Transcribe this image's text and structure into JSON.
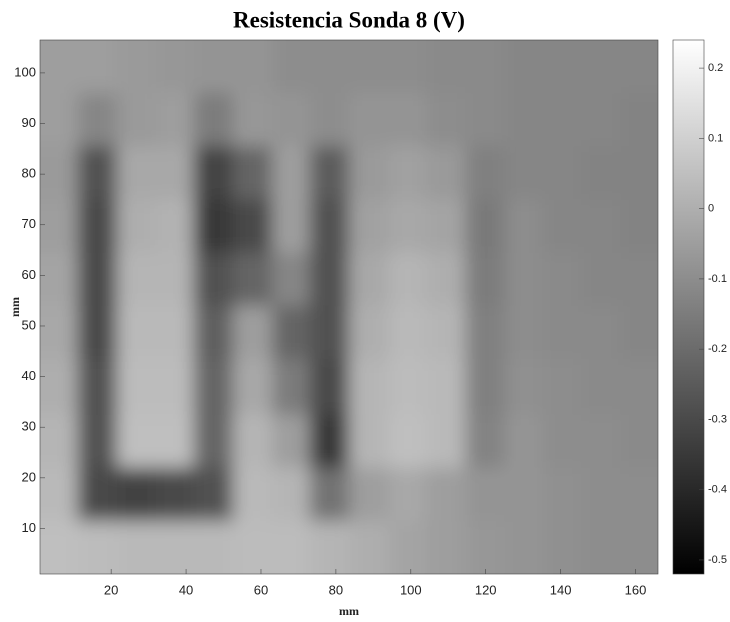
{
  "chart_data": {
    "type": "heatmap",
    "title": "Resistencia Sonda 8 (V)",
    "x_label": "mm",
    "y_label": "mm",
    "colormap": "gray",
    "x": [
      6,
      16,
      27,
      37,
      47,
      58,
      68,
      78,
      89,
      99,
      109,
      120,
      130,
      140,
      151,
      161
    ],
    "y": [
      101,
      91,
      80,
      70,
      59,
      49,
      38,
      27,
      17,
      6
    ],
    "z": [
      [
        -0.05,
        -0.05,
        -0.06,
        -0.07,
        -0.08,
        -0.08,
        -0.1,
        -0.1,
        -0.1,
        -0.1,
        -0.11,
        -0.11,
        -0.12,
        -0.12,
        -0.12,
        -0.12
      ],
      [
        -0.05,
        -0.12,
        -0.06,
        -0.05,
        -0.15,
        -0.07,
        -0.08,
        -0.1,
        -0.08,
        -0.08,
        -0.1,
        -0.11,
        -0.12,
        -0.12,
        -0.12,
        -0.13
      ],
      [
        -0.06,
        -0.28,
        -0.02,
        -0.02,
        -0.32,
        -0.22,
        -0.05,
        -0.25,
        -0.06,
        -0.04,
        -0.06,
        -0.14,
        -0.12,
        -0.12,
        -0.13,
        -0.13
      ],
      [
        -0.05,
        -0.3,
        0.0,
        0.01,
        -0.35,
        -0.3,
        -0.05,
        -0.28,
        -0.04,
        -0.02,
        -0.03,
        -0.16,
        -0.1,
        -0.12,
        -0.12,
        -0.13
      ],
      [
        -0.03,
        -0.3,
        0.02,
        0.02,
        -0.28,
        -0.22,
        -0.12,
        -0.28,
        -0.02,
        0.02,
        0.0,
        -0.15,
        -0.1,
        -0.11,
        -0.12,
        -0.12
      ],
      [
        -0.02,
        -0.3,
        0.03,
        0.03,
        -0.24,
        -0.05,
        -0.22,
        -0.28,
        0.0,
        0.03,
        0.02,
        -0.14,
        -0.1,
        -0.11,
        -0.11,
        -0.12
      ],
      [
        0.0,
        -0.28,
        0.04,
        0.04,
        -0.22,
        -0.02,
        -0.15,
        -0.3,
        0.02,
        0.04,
        0.03,
        -0.14,
        -0.09,
        -0.1,
        -0.11,
        -0.11
      ],
      [
        0.02,
        -0.28,
        0.05,
        0.05,
        -0.22,
        0.02,
        -0.05,
        -0.35,
        0.02,
        0.05,
        0.03,
        -0.13,
        -0.08,
        -0.1,
        -0.1,
        -0.11
      ],
      [
        0.03,
        -0.3,
        -0.32,
        -0.3,
        -0.28,
        0.03,
        0.02,
        -0.18,
        -0.05,
        -0.02,
        -0.05,
        -0.08,
        -0.08,
        -0.09,
        -0.1,
        -0.1
      ],
      [
        0.05,
        0.04,
        0.03,
        0.03,
        0.03,
        0.04,
        0.04,
        0.02,
        0.0,
        -0.03,
        -0.05,
        -0.07,
        -0.08,
        -0.09,
        -0.1,
        -0.1
      ]
    ],
    "xlim": [
      1,
      166
    ],
    "ylim": [
      1,
      106.5
    ],
    "xticks": [
      20,
      40,
      60,
      80,
      100,
      120,
      140,
      160
    ],
    "yticks": [
      10,
      20,
      30,
      40,
      50,
      60,
      70,
      80,
      90,
      100
    ],
    "clim": [
      -0.52,
      0.24
    ],
    "cticks": [
      0.2,
      0.1,
      0,
      -0.1,
      -0.2,
      -0.3,
      -0.4,
      -0.5
    ]
  }
}
